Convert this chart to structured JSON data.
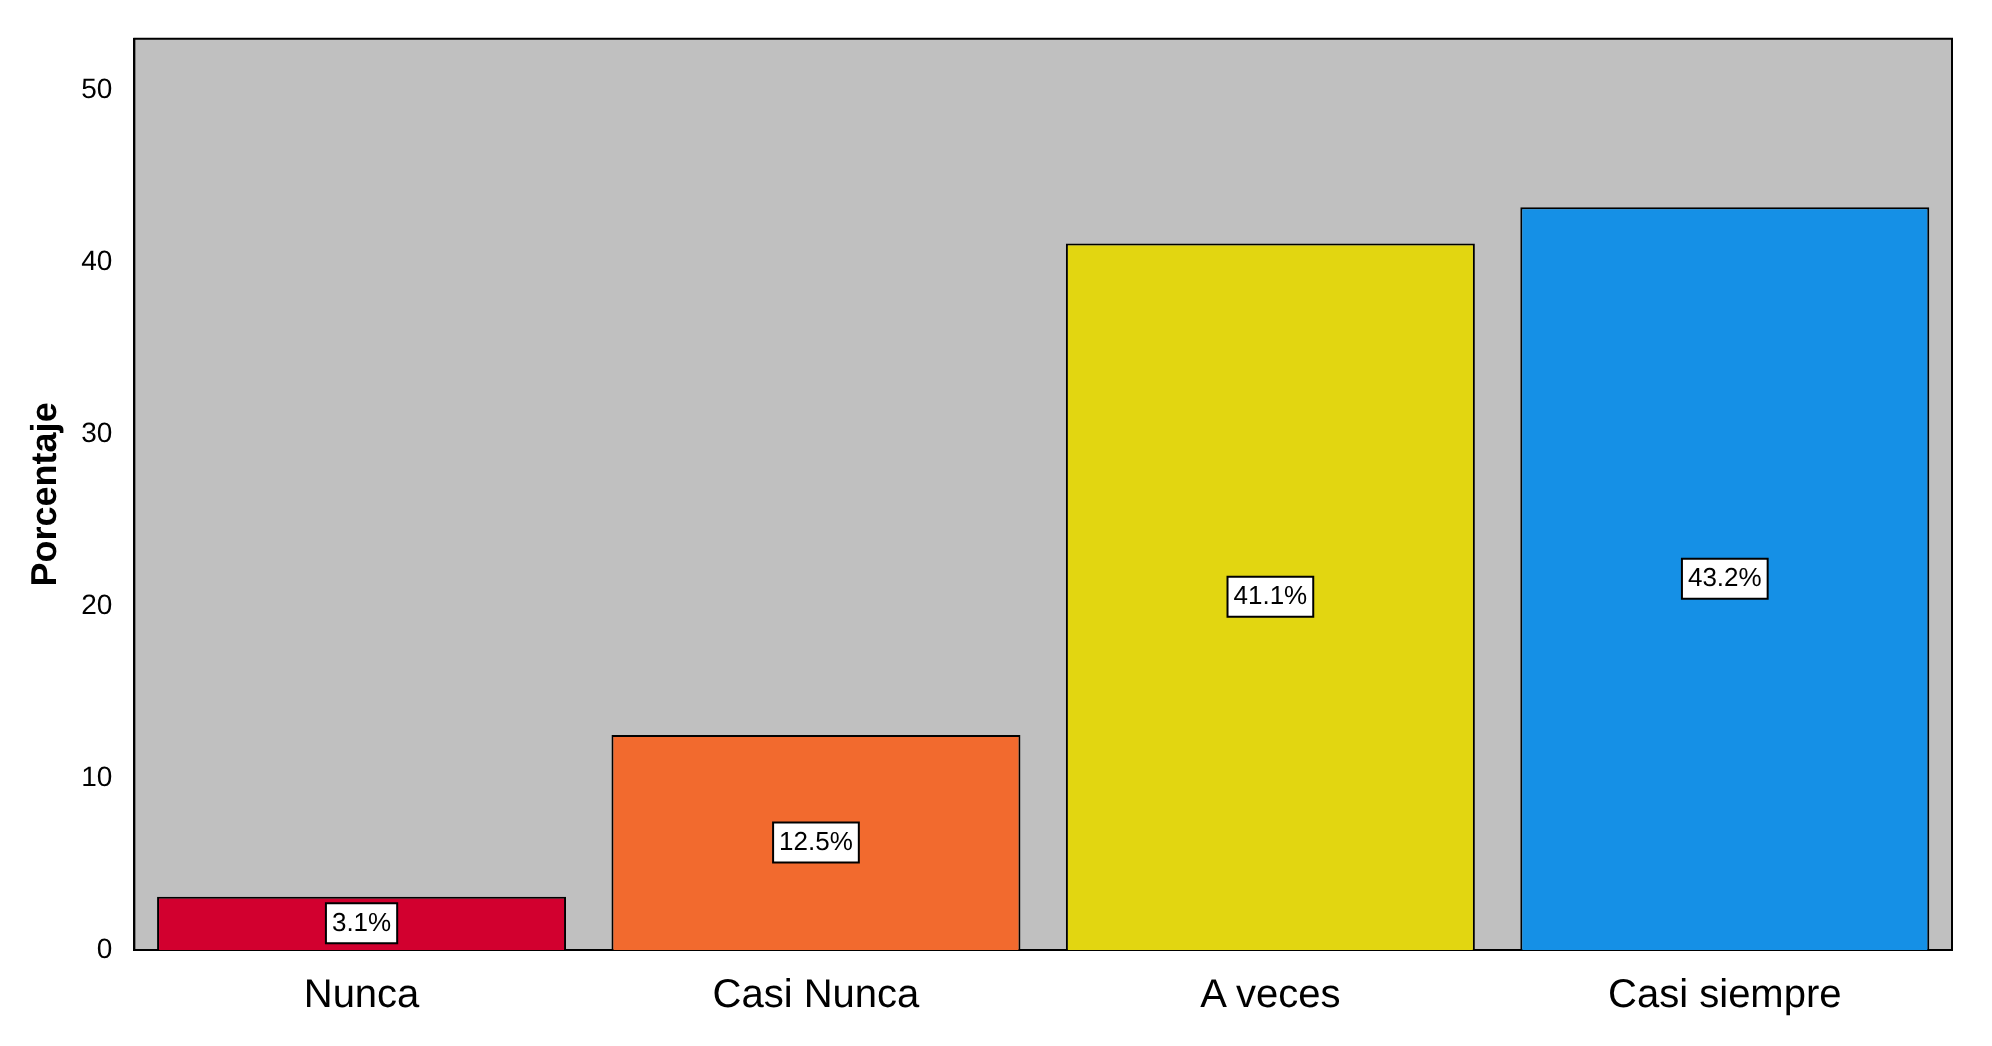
{
  "chart_data": {
    "type": "bar",
    "ylabel": "Porcentaje",
    "categories": [
      "Nunca",
      "Casi Nunca",
      "A veces",
      "Casi siempre"
    ],
    "values": [
      3.1,
      12.5,
      41.1,
      43.2
    ],
    "colors": [
      "#d2002f",
      "#f26a2e",
      "#e2d611",
      "#1590e6"
    ],
    "value_labels": [
      "3.1%",
      "12.5%",
      "41.1%",
      "43.2%"
    ],
    "ylim": [
      0,
      53
    ],
    "yticks": [
      0,
      10,
      20,
      30,
      40,
      50
    ],
    "grid": false,
    "legend": false
  }
}
